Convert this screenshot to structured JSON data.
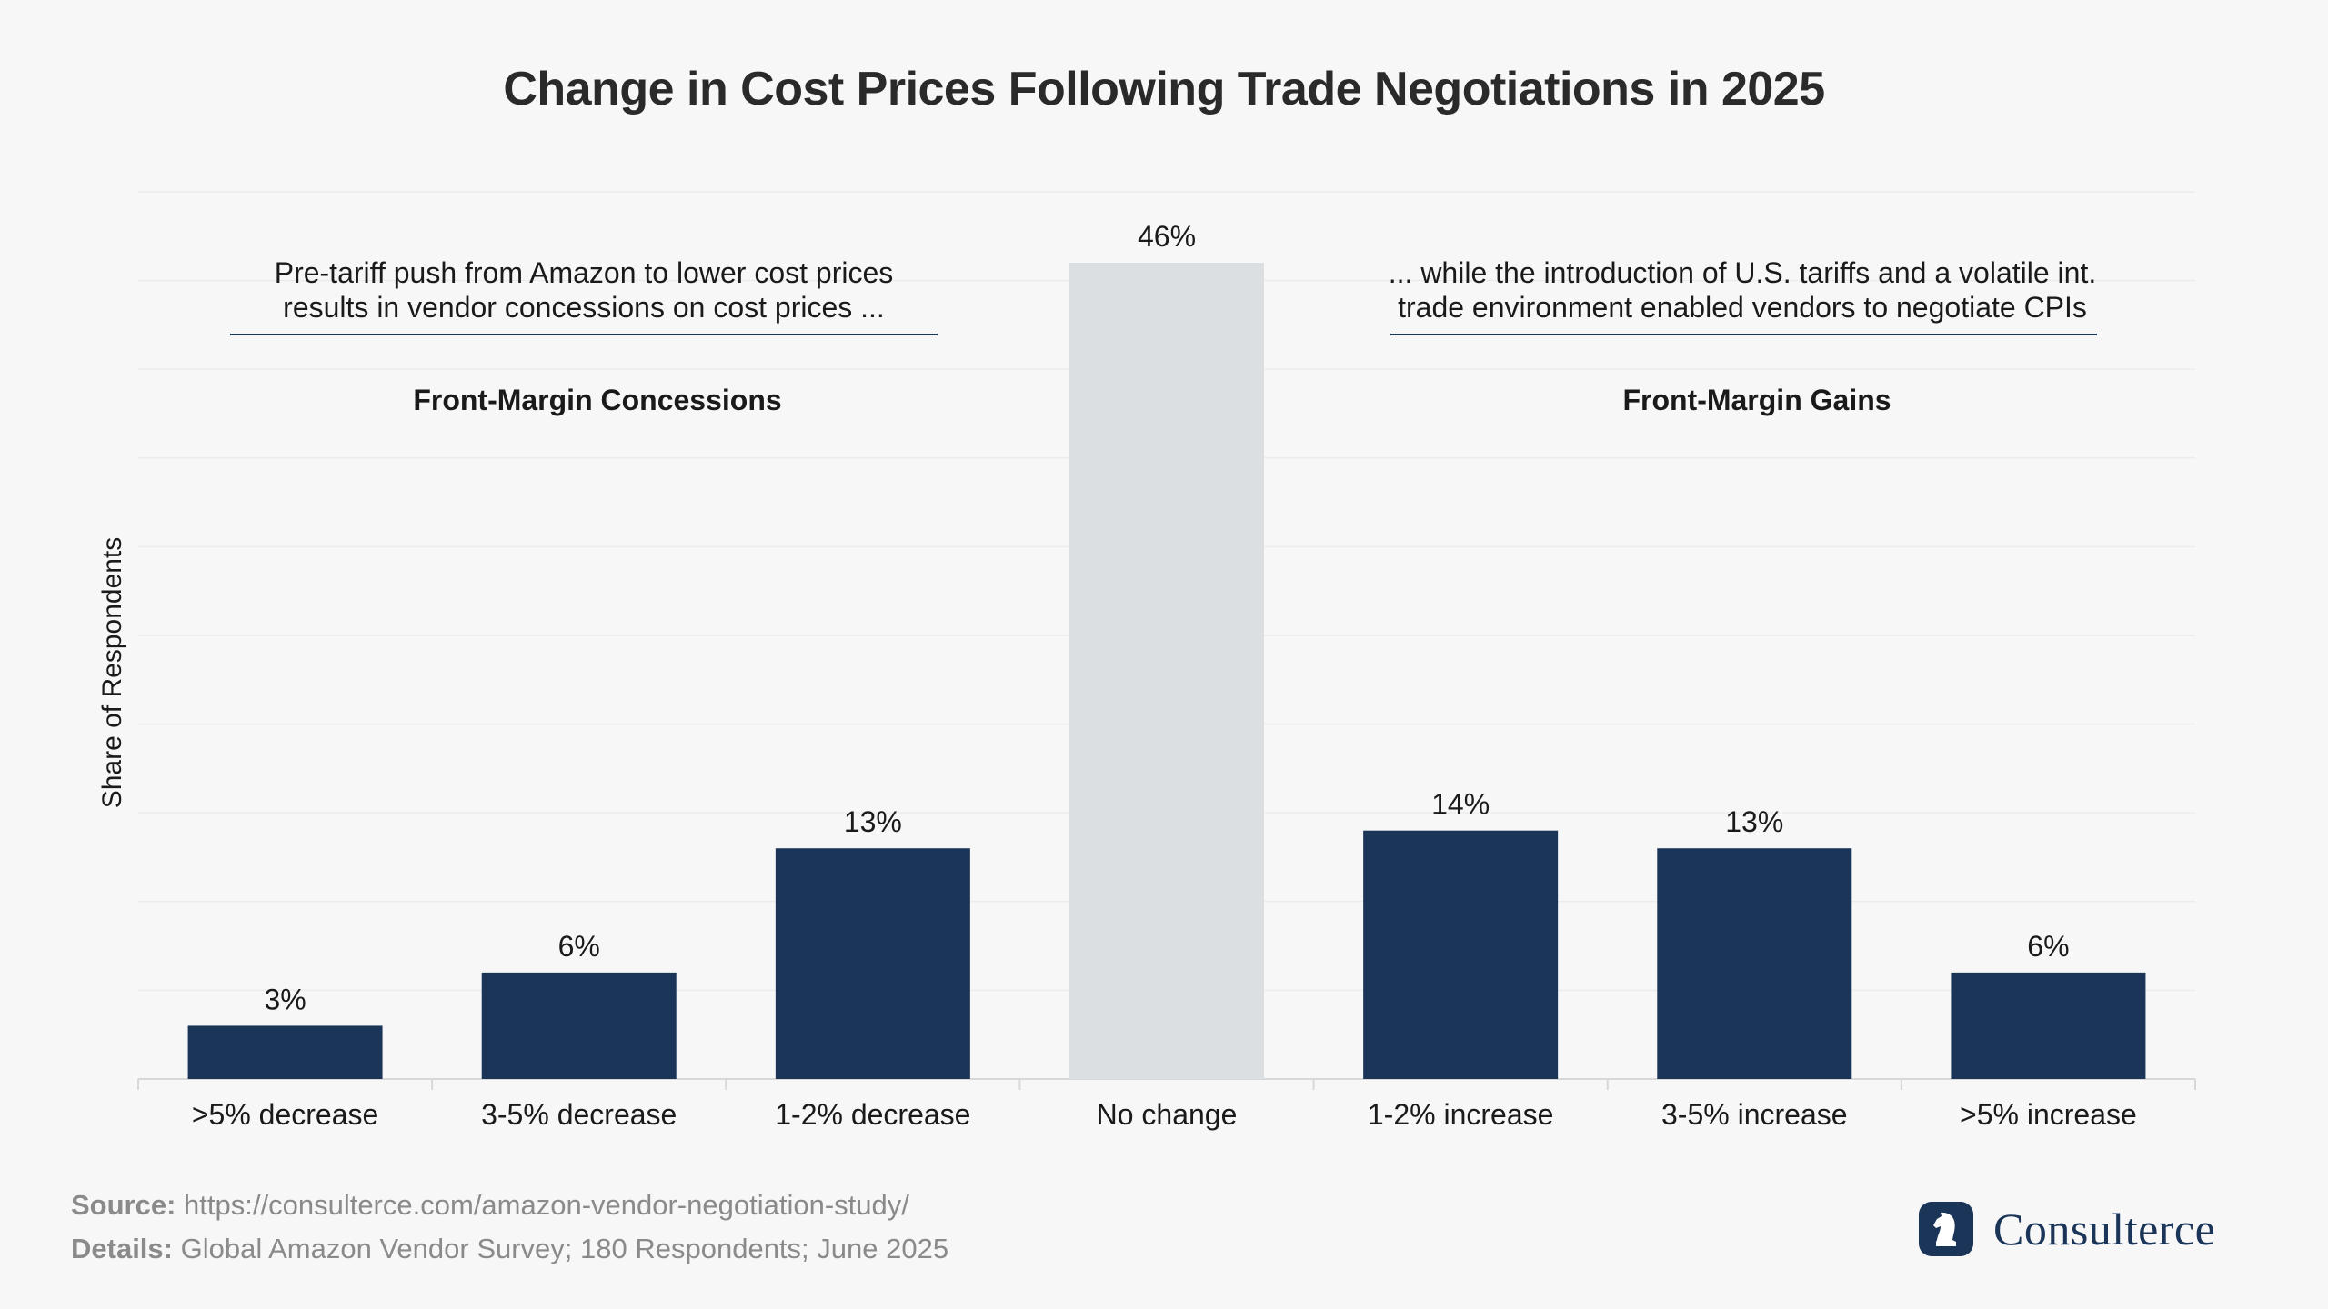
{
  "brand": {
    "name": "Consulterce",
    "color": "#1b3558",
    "icon": "knight-chess-icon"
  },
  "source": {
    "label": "Source:",
    "text": "https://consulterce.com/amazon-vendor-negotiation-study/"
  },
  "details": {
    "label": "Details:",
    "text": "Global Amazon Vendor Survey; 180 Respondents; June 2025"
  },
  "chart_data": {
    "type": "bar",
    "title": "Change in Cost Prices Following Trade Negotiations in 2025",
    "ylabel": "Share of Respondents",
    "xlabel": "",
    "ylim": [
      0,
      50
    ],
    "grid": true,
    "categories": [
      ">5% decrease",
      "3-5% decrease",
      "1-2% decrease",
      "No change",
      "1-2% increase",
      "3-5% increase",
      ">5% increase"
    ],
    "values": [
      3,
      6,
      13,
      46,
      14,
      13,
      6
    ],
    "value_labels": [
      "3%",
      "6%",
      "13%",
      "46%",
      "14%",
      "13%",
      "6%"
    ],
    "bar_colors": [
      "#1b3558",
      "#1b3558",
      "#1b3558",
      "#dcdfe2",
      "#1b3558",
      "#1b3558",
      "#1b3558"
    ],
    "groups": [
      {
        "label": "Front-Margin Concessions",
        "annotation": [
          "Pre-tariff push from Amazon to lower cost prices",
          "results in vendor concessions on cost prices ..."
        ]
      },
      {
        "label": "Front-Margin Gains",
        "annotation": [
          "... while the introduction of U.S. tariffs and a volatile int.",
          "trade environment enabled vendors to negotiate CPIs"
        ]
      }
    ]
  }
}
